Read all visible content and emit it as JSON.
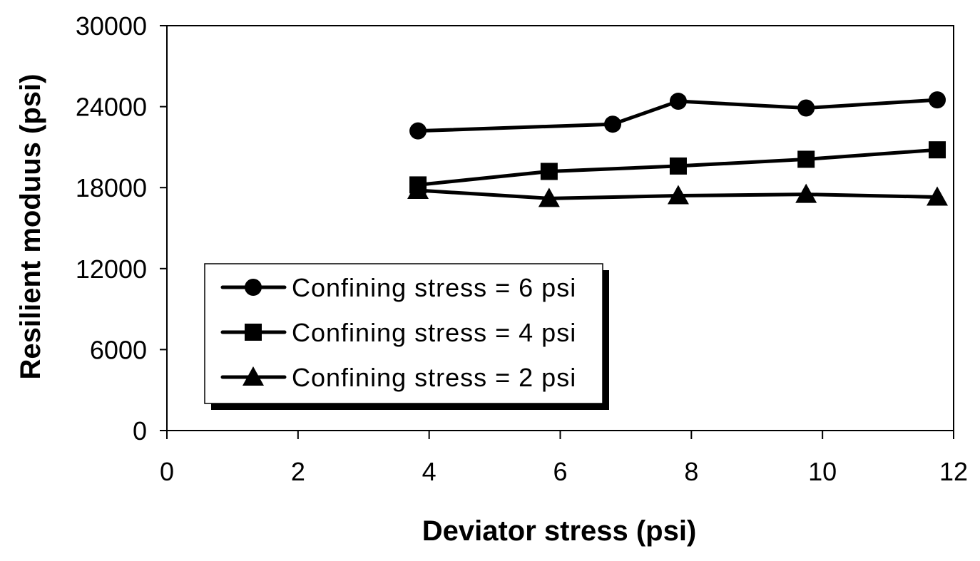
{
  "chart_data": {
    "type": "line",
    "xlabel": "Deviator stress (psi)",
    "ylabel": "Resilient moduus (psi)",
    "xlim": [
      0,
      12
    ],
    "ylim": [
      0,
      30000
    ],
    "xticks": [
      0,
      2,
      4,
      6,
      8,
      10,
      12
    ],
    "yticks": [
      0,
      6000,
      12000,
      18000,
      24000,
      30000
    ],
    "grid": false,
    "legend_position": "lower-left",
    "series": [
      {
        "name": "Confining stress = 6 psi",
        "marker": "circle",
        "x": [
          3.83,
          6.8,
          7.8,
          9.75,
          11.75
        ],
        "y": [
          22200,
          22700,
          24400,
          23900,
          24500
        ]
      },
      {
        "name": "Confining stress = 4 psi",
        "marker": "square",
        "x": [
          3.83,
          5.83,
          7.8,
          9.75,
          11.75
        ],
        "y": [
          18200,
          19200,
          19600,
          20100,
          20800
        ]
      },
      {
        "name": "Confining stress = 2 psi",
        "marker": "triangle",
        "x": [
          3.83,
          5.83,
          7.8,
          9.75,
          11.75
        ],
        "y": [
          17800,
          17200,
          17400,
          17500,
          17300
        ]
      }
    ]
  }
}
